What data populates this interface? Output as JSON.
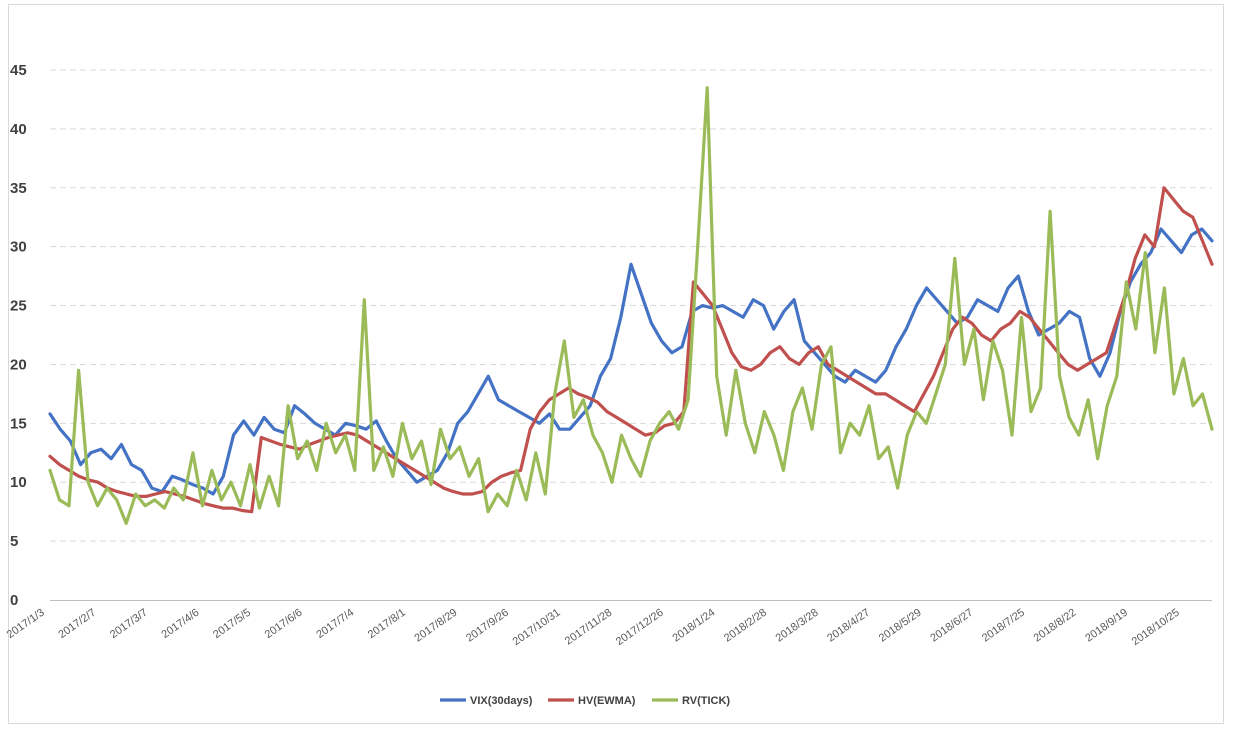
{
  "chart_data": {
    "type": "line",
    "title": "",
    "xlabel": "",
    "ylabel": "",
    "ylim": [
      0,
      45
    ],
    "yticks": [
      "0",
      "5",
      "10",
      "15",
      "20",
      "25",
      "30",
      "35",
      "40",
      "45"
    ],
    "grid": "horizontal dashed",
    "legend_position": "bottom",
    "x_tick_labels": [
      "2017/1/3",
      "2017/2/7",
      "2017/3/7",
      "2017/4/6",
      "2017/5/5",
      "2017/6/6",
      "2017/7/4",
      "2017/8/1",
      "2017/8/29",
      "2017/9/26",
      "2017/10/31",
      "2017/11/28",
      "2017/12/26",
      "2018/1/24",
      "2018/2/28",
      "2018/3/28",
      "2018/4/27",
      "2018/5/29",
      "2018/6/27",
      "2018/7/25",
      "2018/8/22",
      "2018/9/19",
      "2018/10/25"
    ],
    "series": [
      {
        "name": "VIX(30days)",
        "color": "#4472c4",
        "values": [
          15.8,
          14.5,
          13.5,
          11.5,
          12.5,
          12.8,
          12.0,
          13.2,
          11.5,
          11.0,
          9.5,
          9.2,
          10.5,
          10.2,
          9.8,
          9.5,
          9.0,
          10.5,
          14.0,
          15.2,
          14.0,
          15.5,
          14.5,
          14.2,
          16.5,
          15.8,
          15.0,
          14.5,
          14.0,
          15.0,
          14.8,
          14.5,
          15.2,
          13.5,
          12.0,
          11.0,
          10.0,
          10.5,
          11.0,
          12.5,
          15.0,
          16.0,
          17.5,
          19.0,
          17.0,
          16.5,
          16.0,
          15.5,
          15.0,
          15.8,
          14.5,
          14.5,
          15.5,
          16.5,
          19.0,
          20.5,
          24.0,
          28.5,
          26.0,
          23.5,
          22.0,
          21.0,
          21.5,
          24.5,
          25.0,
          24.8,
          25.0,
          24.5,
          24.0,
          25.5,
          25.0,
          23.0,
          24.5,
          25.5,
          22.0,
          21.0,
          20.0,
          19.0,
          18.5,
          19.5,
          19.0,
          18.5,
          19.5,
          21.5,
          23.0,
          25.0,
          26.5,
          25.5,
          24.5,
          23.5,
          24.0,
          25.5,
          25.0,
          24.5,
          26.5,
          27.5,
          24.5,
          22.5,
          23.0,
          23.5,
          24.5,
          24.0,
          20.5,
          19.0,
          21.0,
          24.5,
          27.0,
          28.5,
          29.5,
          31.5,
          30.5,
          29.5,
          31.0,
          31.5,
          30.5
        ]
      },
      {
        "name": "HV(EWMA)",
        "color": "#c0504d",
        "values": [
          12.2,
          11.5,
          11.0,
          10.5,
          10.2,
          10.0,
          9.5,
          9.2,
          9.0,
          8.8,
          8.8,
          9.0,
          9.2,
          9.0,
          8.8,
          8.5,
          8.2,
          8.0,
          7.8,
          7.8,
          7.6,
          7.5,
          13.8,
          13.5,
          13.2,
          13.0,
          12.8,
          13.2,
          13.5,
          13.8,
          14.0,
          14.2,
          14.0,
          13.5,
          13.0,
          12.5,
          12.0,
          11.5,
          11.0,
          10.5,
          10.0,
          9.5,
          9.2,
          9.0,
          9.0,
          9.2,
          10.0,
          10.5,
          10.8,
          11.0,
          14.5,
          16.0,
          17.0,
          17.5,
          18.0,
          17.5,
          17.2,
          16.8,
          16.0,
          15.5,
          15.0,
          14.5,
          14.0,
          14.2,
          14.8,
          15.0,
          16.0,
          27.0,
          26.0,
          25.0,
          23.0,
          21.0,
          19.8,
          19.5,
          20.0,
          21.0,
          21.5,
          20.5,
          20.0,
          21.0,
          21.5,
          20.0,
          19.5,
          19.0,
          18.5,
          18.0,
          17.5,
          17.5,
          17.0,
          16.5,
          16.0,
          17.5,
          19.0,
          21.0,
          23.0,
          24.0,
          23.5,
          22.5,
          22.0,
          23.0,
          23.5,
          24.5,
          24.0,
          23.0,
          22.0,
          21.0,
          20.0,
          19.5,
          20.0,
          20.5,
          21.0,
          23.5,
          26.0,
          29.0,
          31.0,
          30.0,
          35.0,
          34.0,
          33.0,
          32.5,
          30.5,
          28.5
        ]
      },
      {
        "name": "RV(TICK)",
        "color": "#9bbb59",
        "values": [
          11.0,
          8.5,
          8.0,
          19.5,
          10.0,
          8.0,
          9.5,
          8.5,
          6.5,
          9.0,
          8.0,
          8.5,
          7.8,
          9.5,
          8.5,
          12.5,
          8.0,
          11.0,
          8.5,
          10.0,
          8.0,
          11.5,
          7.8,
          10.5,
          8.0,
          16.5,
          12.0,
          13.5,
          11.0,
          15.0,
          12.5,
          14.0,
          11.0,
          25.5,
          11.0,
          13.0,
          10.5,
          15.0,
          12.0,
          13.5,
          9.8,
          14.5,
          12.0,
          13.0,
          10.5,
          12.0,
          7.5,
          9.0,
          8.0,
          11.0,
          8.5,
          12.5,
          9.0,
          17.5,
          22.0,
          15.5,
          17.0,
          14.0,
          12.5,
          10.0,
          14.0,
          12.0,
          10.5,
          13.5,
          15.0,
          16.0,
          14.5,
          17.0,
          30.0,
          43.5,
          19.0,
          14.0,
          19.5,
          15.0,
          12.5,
          16.0,
          14.0,
          11.0,
          16.0,
          18.0,
          14.5,
          20.0,
          21.5,
          12.5,
          15.0,
          14.0,
          16.5,
          12.0,
          13.0,
          9.5,
          14.0,
          16.0,
          15.0,
          17.5,
          20.0,
          29.0,
          20.0,
          23.0,
          17.0,
          22.0,
          19.5,
          14.0,
          24.0,
          16.0,
          18.0,
          33.0,
          19.0,
          15.5,
          14.0,
          17.0,
          12.0,
          16.5,
          19.0,
          27.0,
          23.0,
          29.5,
          21.0,
          26.5,
          17.5,
          20.5,
          16.5,
          17.5,
          14.5
        ]
      }
    ]
  }
}
